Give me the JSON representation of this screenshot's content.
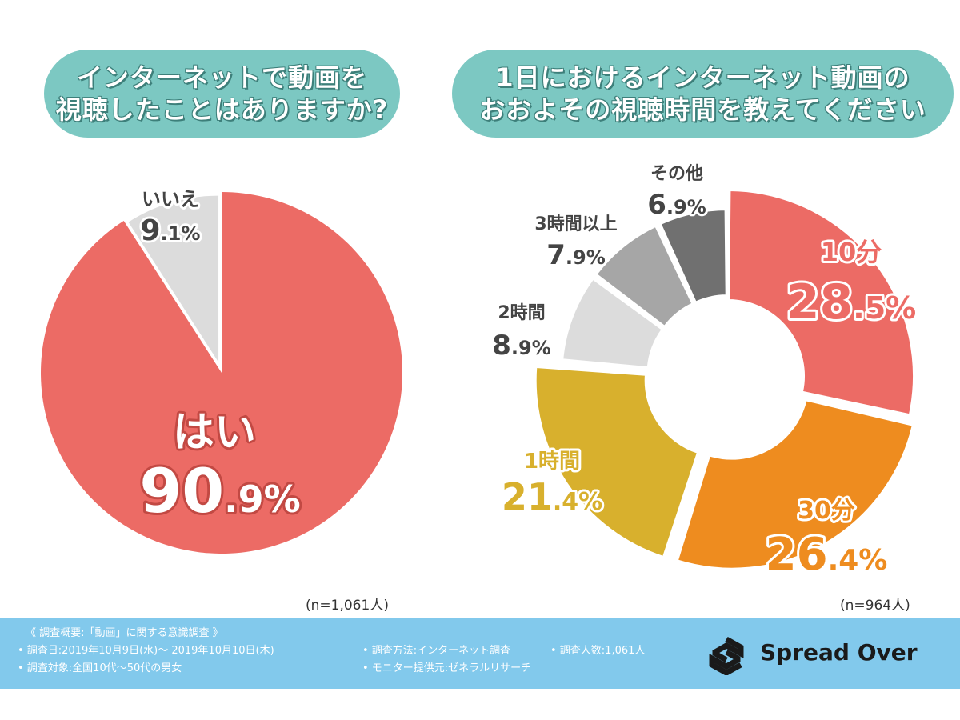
{
  "titles": {
    "left_line1": "インターネットで動画を",
    "left_line2": "視聴したことはありますか?",
    "right_line1": "1日におけるインターネット動画の",
    "right_line2": "おおよその視聴時間を教えてください"
  },
  "chart_data": [
    {
      "type": "pie",
      "title": "インターネットで動画を視聴したことはありますか?",
      "categories": [
        "はい",
        "いいえ"
      ],
      "values": [
        90.9,
        9.1
      ],
      "value_labels": [
        "90.9%",
        "9.1%"
      ],
      "colors": [
        "#ec6b65",
        "#dcdcdc"
      ],
      "sample_note": "(n=1,061人)"
    },
    {
      "type": "pie",
      "subtype": "donut",
      "title": "1日におけるインターネット動画のおおよその視聴時間を教えてください",
      "categories": [
        "10分",
        "30分",
        "1時間",
        "2時間",
        "3時間以上",
        "その他"
      ],
      "values": [
        28.5,
        26.4,
        21.4,
        8.9,
        7.9,
        6.9
      ],
      "value_labels": [
        "28.5%",
        "26.4%",
        "21.4%",
        "8.9%",
        "7.9%",
        "6.9%"
      ],
      "colors": [
        "#ec6b65",
        "#ee8c1f",
        "#d8b02d",
        "#dcdcdc",
        "#a6a6a6",
        "#707070"
      ],
      "label_colors": [
        "#ec6b65",
        "#ee8c1f",
        "#d8b02d",
        "#444444",
        "#444444",
        "#444444"
      ],
      "sample_note": "(n=964人)"
    }
  ],
  "footer": {
    "heading": "《 調査概要:「動画」に関する意識調査 》",
    "date": "• 調査日:2019年10月9日(水)〜 2019年10月10日(木)",
    "target": "• 調査対象:全国10代〜50代の男女",
    "method": "• 調査方法:インターネット調査",
    "count": "• 調査人数:1,061人",
    "provider": "• モニター提供元:ゼネラルリサーチ"
  },
  "brand": {
    "name": "Spread Over"
  }
}
